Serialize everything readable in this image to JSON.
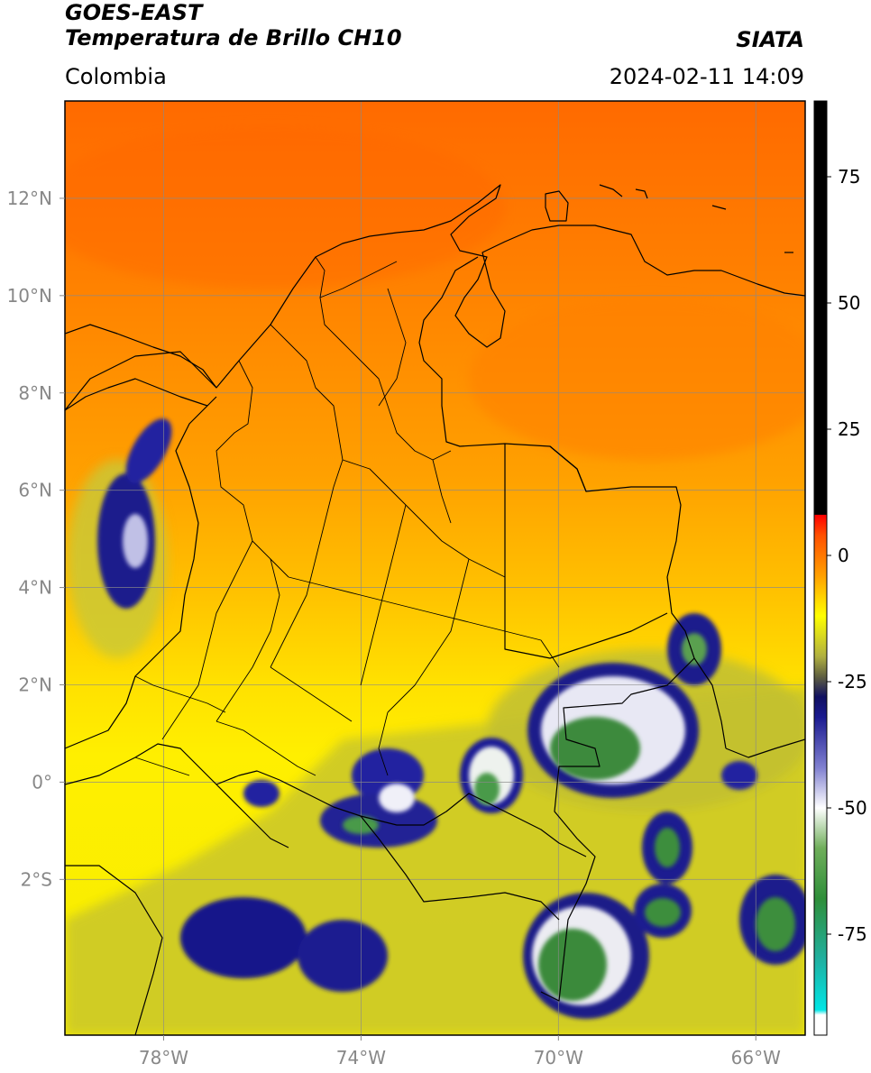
{
  "header": {
    "satellite": "GOES-EAST",
    "product": "Temperatura de Brillo CH10",
    "region": "Colombia",
    "brand": "SIATA",
    "datetime": "2024-02-11 14:09"
  },
  "map": {
    "lon_range": [
      -80,
      -65
    ],
    "lat_range": [
      -5.2,
      14
    ],
    "lon_ticks": [
      {
        "value": -78,
        "label": "78°W"
      },
      {
        "value": -74,
        "label": "74°W"
      },
      {
        "value": -70,
        "label": "70°W"
      },
      {
        "value": -66,
        "label": "66°W"
      }
    ],
    "lat_ticks": [
      {
        "value": 12,
        "label": "12°N"
      },
      {
        "value": 10,
        "label": "10°N"
      },
      {
        "value": 8,
        "label": "8°N"
      },
      {
        "value": 6,
        "label": "6°N"
      },
      {
        "value": 4,
        "label": "4°N"
      },
      {
        "value": 2,
        "label": "2°N"
      },
      {
        "value": 0,
        "label": "0°"
      },
      {
        "value": -2,
        "label": "2°S"
      }
    ],
    "grid": true,
    "field_colors": {
      "north": "#ff6a00",
      "central": "#ffa000",
      "south": "#ffee00",
      "cold_olive": "#c8c830",
      "cold_navy": "#16168a",
      "cold_white": "#f2f2f2",
      "cold_green": "#3a8a3a",
      "border": "#000000"
    }
  },
  "colorbar": {
    "range": [
      -95,
      90
    ],
    "ticks": [
      {
        "value": 75,
        "label": "75"
      },
      {
        "value": 50,
        "label": "50"
      },
      {
        "value": 25,
        "label": "25"
      },
      {
        "value": 0,
        "label": "0"
      },
      {
        "value": -25,
        "label": "-25"
      },
      {
        "value": -50,
        "label": "-50"
      },
      {
        "value": -75,
        "label": "-75"
      }
    ],
    "stops": [
      {
        "value": -95,
        "color": "#ffffff"
      },
      {
        "value": -91,
        "color": "#ffffff"
      },
      {
        "value": -90,
        "color": "#00e5e5"
      },
      {
        "value": -80,
        "color": "#20b0a0"
      },
      {
        "value": -68,
        "color": "#2f8f3a"
      },
      {
        "value": -58,
        "color": "#6fae5a"
      },
      {
        "value": -50,
        "color": "#ffffff"
      },
      {
        "value": -42,
        "color": "#8080d0"
      },
      {
        "value": -32,
        "color": "#1a1a90"
      },
      {
        "value": -28,
        "color": "#101060"
      },
      {
        "value": -24,
        "color": "#606040"
      },
      {
        "value": -20,
        "color": "#b0b040"
      },
      {
        "value": -12,
        "color": "#ffff00"
      },
      {
        "value": -4,
        "color": "#ffa000"
      },
      {
        "value": 4,
        "color": "#ff5000"
      },
      {
        "value": 8,
        "color": "#ff0000"
      },
      {
        "value": 8.1,
        "color": "#000000"
      },
      {
        "value": 90,
        "color": "#000000"
      }
    ]
  }
}
